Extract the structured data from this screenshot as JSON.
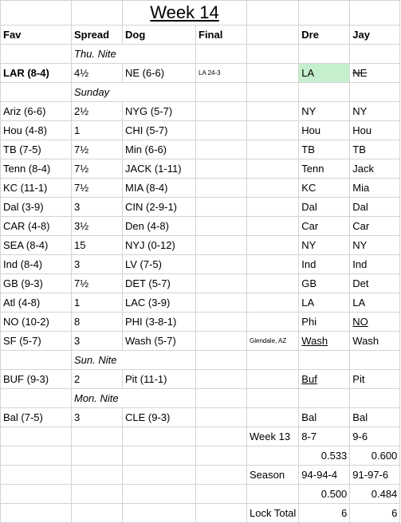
{
  "title": "Week 14",
  "headers": {
    "fav": "Fav",
    "spread": "Spread",
    "dog": "Dog",
    "final": "Final",
    "dre": "Dre",
    "jay": "Jay"
  },
  "sections": {
    "thu": "Thu. Nite",
    "sun": "Sunday",
    "sunnite": "Sun. Nite",
    "mon": "Mon. Nite"
  },
  "games": {
    "g0": {
      "fav": "LAR (8-4)",
      "spread": "4½",
      "dog": "NE (6-6)",
      "final": "LA 24-3",
      "dre": "LA",
      "jay": "NE"
    },
    "g1": {
      "fav": "Ariz (6-6)",
      "spread": "2½",
      "dog": "NYG (5-7)",
      "final": "",
      "dre": "NY",
      "jay": "NY"
    },
    "g2": {
      "fav": "Hou (4-8)",
      "spread": "1",
      "dog": "CHI (5-7)",
      "final": "",
      "dre": "Hou",
      "jay": "Hou"
    },
    "g3": {
      "fav": "TB (7-5)",
      "spread": "7½",
      "dog": "Min (6-6)",
      "final": "",
      "dre": "TB",
      "jay": "TB"
    },
    "g4": {
      "fav": "Tenn (8-4)",
      "spread": "7½",
      "dog": "JACK (1-11)",
      "final": "",
      "dre": "Tenn",
      "jay": "Jack"
    },
    "g5": {
      "fav": "KC (11-1)",
      "spread": "7½",
      "dog": "MIA (8-4)",
      "final": "",
      "dre": "KC",
      "jay": "Mia"
    },
    "g6": {
      "fav": "Dal (3-9)",
      "spread": "3",
      "dog": "CIN (2-9-1)",
      "final": "",
      "dre": "Dal",
      "jay": "Dal"
    },
    "g7": {
      "fav": "CAR (4-8)",
      "spread": "3½",
      "dog": "Den (4-8)",
      "final": "",
      "dre": "Car",
      "jay": "Car"
    },
    "g8": {
      "fav": "SEA (8-4)",
      "spread": "15",
      "dog": "NYJ (0-12)",
      "final": "",
      "dre": "NY",
      "jay": "NY"
    },
    "g9": {
      "fav": "Ind (8-4)",
      "spread": "3",
      "dog": "LV (7-5)",
      "final": "",
      "dre": "Ind",
      "jay": "Ind"
    },
    "g10": {
      "fav": "GB (9-3)",
      "spread": "7½",
      "dog": "DET (5-7)",
      "final": "",
      "dre": "GB",
      "jay": "Det"
    },
    "g11": {
      "fav": "Atl (4-8)",
      "spread": "1",
      "dog": "LAC (3-9)",
      "final": "",
      "dre": "LA",
      "jay": "LA"
    },
    "g12": {
      "fav": "NO (10-2)",
      "spread": "8",
      "dog": "PHI (3-8-1)",
      "final": "",
      "dre": "Phi",
      "jay": "NO"
    },
    "g13": {
      "fav": "SF (5-7)",
      "spread": "3",
      "dog": "Wash (5-7)",
      "final": "Glendale, AZ",
      "dre": "Wash",
      "jay": "Wash"
    },
    "g14": {
      "fav": "BUF (9-3)",
      "spread": "2",
      "dog": "Pit (11-1)",
      "final": "",
      "dre": "Buf",
      "jay": "Pit"
    },
    "g15": {
      "fav": "Bal (7-5)",
      "spread": "3",
      "dog": "CLE (9-3)",
      "final": "",
      "dre": "Bal",
      "jay": "Bal"
    }
  },
  "summary": {
    "week_label": "Week 13",
    "week_dre": "8-7",
    "week_jay": "9-6",
    "week_pct_dre": "0.533",
    "week_pct_jay": "0.600",
    "season_label": "Season",
    "season_dre": "94-94-4",
    "season_jay": "91-97-6",
    "season_pct_dre": "0.500",
    "season_pct_jay": "0.484",
    "lock_label": "Lock Total",
    "lock_dre": "6",
    "lock_jay": "6"
  },
  "colors": {
    "highlight": "#c6efce",
    "gridline": "#d4d4d4"
  }
}
